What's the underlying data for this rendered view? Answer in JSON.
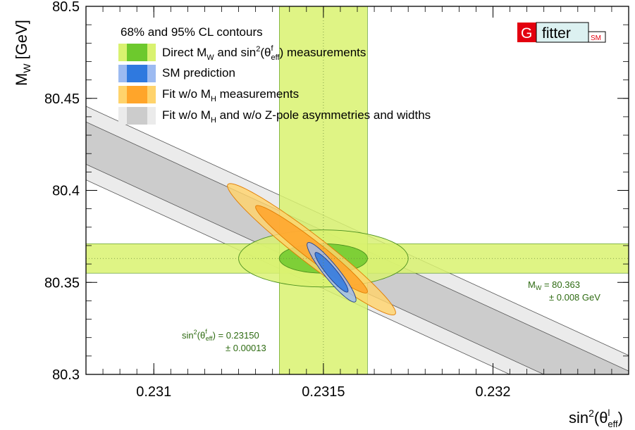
{
  "chart_data": {
    "type": "contour",
    "xlabel": {
      "base": "sin",
      "sup": "2",
      "mid": "(θ",
      "sup2": "l",
      "sub2": "eff",
      "end": ")"
    },
    "ylabel": {
      "base": "M",
      "sub": "W",
      "end": " [GeV]"
    },
    "xlim": [
      0.2308,
      0.2324
    ],
    "ylim": [
      80.3,
      80.5
    ],
    "x_ticks": [
      {
        "value": 0.231,
        "label": "0.231"
      },
      {
        "value": 0.2315,
        "label": "0.2315"
      },
      {
        "value": 0.232,
        "label": "0.232"
      }
    ],
    "y_ticks": [
      {
        "value": 80.3,
        "label": "80.3"
      },
      {
        "value": 80.35,
        "label": "80.35"
      },
      {
        "value": 80.4,
        "label": "80.4"
      },
      {
        "value": 80.45,
        "label": "80.45"
      },
      {
        "value": 80.5,
        "label": "80.5"
      }
    ],
    "legend": {
      "header": "68% and 95% CL contours",
      "entries": [
        {
          "id": "direct",
          "parts": [
            "Direct M",
            "W",
            " and sin",
            "2",
            "(θ",
            "f",
            "eff",
            ")  measurements"
          ],
          "color68": "#6dc92d",
          "color95": "#d9f270"
        },
        {
          "id": "sm",
          "parts": [
            "SM prediction"
          ],
          "color68": "#2f79df",
          "color95": "#9cbaf1"
        },
        {
          "id": "fit_no_mh",
          "parts": [
            "Fit w/o M",
            "H",
            " measurements"
          ],
          "color68": "#ffa52a",
          "color95": "#ffd36c"
        },
        {
          "id": "fit_no_mh_zpole",
          "parts": [
            "Fit w/o M",
            "H",
            " and w/o Z-pole asymmetries and widths"
          ],
          "color68": "#cccccc",
          "color95": "#ebebeb"
        }
      ]
    },
    "direct_measurements": {
      "mw": {
        "value": 80.363,
        "error": 0.008,
        "label_prefix": "M",
        "label_sub": "W",
        "label_value": " = 80.363",
        "label_error": "± 0.008 GeV"
      },
      "sin2": {
        "value": 0.2315,
        "error": 0.00013,
        "label_prefix": "sin",
        "label_sup": "2",
        "label_mid": "(θ",
        "label_sup2": "f",
        "label_sub2": "eff",
        "label_value": ") = 0.23150",
        "label_error": "± 0.00013"
      }
    },
    "series": [
      {
        "id": "direct",
        "center": [
          0.2315,
          80.363
        ],
        "sigma68": [
          0.00013,
          0.008
        ],
        "sigma95": [
          0.00025,
          0.0155
        ],
        "rho": 0.0,
        "color68": "#6dc92d",
        "color95": "#d9f270",
        "edge": "#4a8f1c"
      },
      {
        "id": "fit_no_mh",
        "center": [
          0.231465,
          80.368
        ],
        "sigma68": [
          0.000165,
          0.0238
        ],
        "sigma95": [
          0.000248,
          0.0357
        ],
        "rho": -0.965,
        "color68": "#ffa52a",
        "color95": "#ffd36c",
        "edge": "#e07b00"
      },
      {
        "id": "sm",
        "center": [
          0.231524,
          80.3555
        ],
        "sigma68": [
          4.88e-05,
          0.0108
        ],
        "sigma95": [
          7.22e-05,
          0.0162
        ],
        "rho": -0.925,
        "color68": "#2f79df",
        "color95": "#9cbaf1",
        "edge": "#1e3f8f"
      },
      {
        "id": "fit_no_mh_zpole",
        "band": true,
        "center_line": {
          "x0": 0.2308,
          "y0": 80.4257,
          "slope": -84.6
        },
        "half_width68": 0.0115,
        "half_width95": 0.02,
        "color68": "#cccccc",
        "color95": "#ebebeb",
        "edge": "#555555"
      }
    ],
    "logo": {
      "g": "G",
      "fitter": "fitter",
      "sm": "SM",
      "g_bg": "#e3000f",
      "fitter_bg": "#dcf1f1"
    }
  }
}
